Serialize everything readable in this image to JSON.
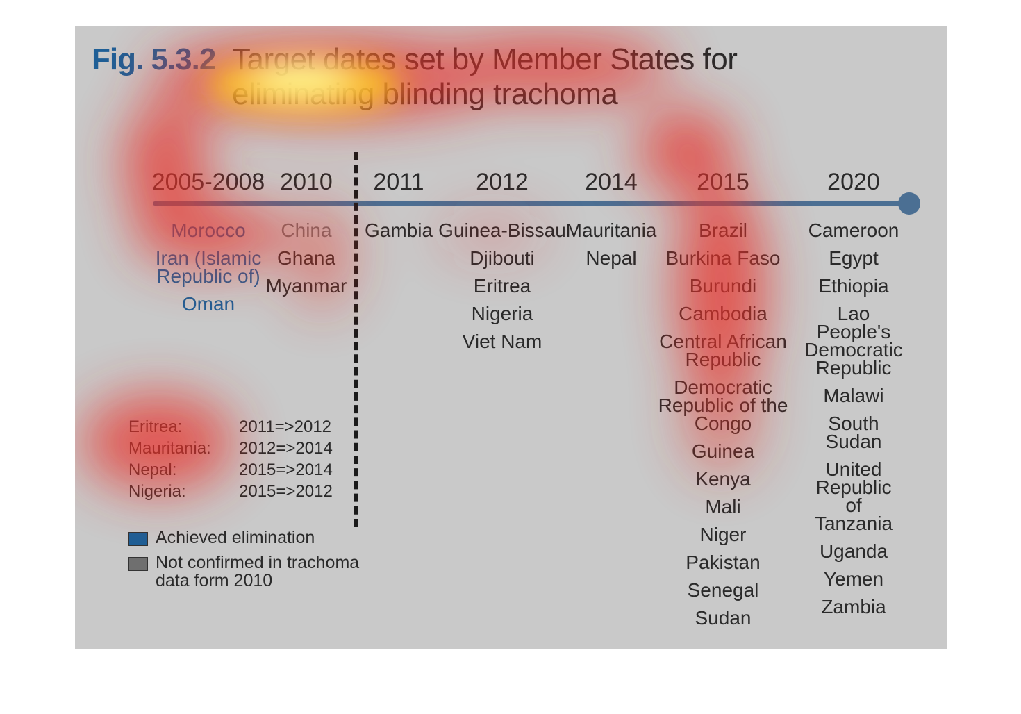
{
  "figure": {
    "label": "Fig. 5.3.2",
    "title": "Target dates set by Member States for eliminating blinding trachoma"
  },
  "colors": {
    "achieved": "#1f5f96",
    "not_confirmed": "#6f6f6f",
    "timeline": "#4b6f93"
  },
  "timeline": [
    {
      "year": "2005-2008",
      "countries": [
        {
          "name": "Morocco",
          "status": "achieved"
        },
        {
          "name": "Iran (Islamic\nRepublic of)",
          "status": "achieved"
        },
        {
          "name": "Oman",
          "status": "achieved"
        }
      ]
    },
    {
      "year": "2010",
      "countries": [
        {
          "name": "China",
          "status": "not_confirmed"
        },
        {
          "name": "Ghana",
          "status": "normal"
        },
        {
          "name": "Myanmar",
          "status": "normal"
        }
      ]
    },
    {
      "year": "2011",
      "countries": [
        {
          "name": "Gambia",
          "status": "normal"
        }
      ]
    },
    {
      "year": "2012",
      "countries": [
        {
          "name": "Guinea-Bissau",
          "status": "normal"
        },
        {
          "name": "Djibouti",
          "status": "normal"
        },
        {
          "name": "Eritrea",
          "status": "normal"
        },
        {
          "name": "Nigeria",
          "status": "normal"
        },
        {
          "name": "Viet Nam",
          "status": "normal"
        }
      ]
    },
    {
      "year": "2014",
      "countries": [
        {
          "name": "Mauritania",
          "status": "normal"
        },
        {
          "name": "Nepal",
          "status": "normal"
        }
      ]
    },
    {
      "year": "2015",
      "countries": [
        {
          "name": "Brazil",
          "status": "normal"
        },
        {
          "name": "Burkina Faso",
          "status": "normal"
        },
        {
          "name": "Burundi",
          "status": "normal"
        },
        {
          "name": "Cambodia",
          "status": "normal"
        },
        {
          "name": "Central African\nRepublic",
          "status": "normal"
        },
        {
          "name": "Democratic\nRepublic of the\nCongo",
          "status": "normal"
        },
        {
          "name": "Guinea",
          "status": "normal"
        },
        {
          "name": "Kenya",
          "status": "normal"
        },
        {
          "name": "Mali",
          "status": "normal"
        },
        {
          "name": "Niger",
          "status": "normal"
        },
        {
          "name": "Pakistan",
          "status": "normal"
        },
        {
          "name": "Senegal",
          "status": "normal"
        },
        {
          "name": "Sudan",
          "status": "normal"
        }
      ]
    },
    {
      "year": "2020",
      "countries": [
        {
          "name": "Cameroon",
          "status": "normal"
        },
        {
          "name": "Egypt",
          "status": "normal"
        },
        {
          "name": "Ethiopia",
          "status": "normal"
        },
        {
          "name": "Lao People's\nDemocratic\nRepublic",
          "status": "normal"
        },
        {
          "name": "Malawi",
          "status": "normal"
        },
        {
          "name": "South Sudan",
          "status": "normal"
        },
        {
          "name": "United Republic\nof Tanzania",
          "status": "normal"
        },
        {
          "name": "Uganda",
          "status": "normal"
        },
        {
          "name": "Yemen",
          "status": "normal"
        },
        {
          "name": "Zambia",
          "status": "normal"
        }
      ]
    }
  ],
  "date_changes": [
    {
      "country": "Eritrea:",
      "change": "2011=>2012"
    },
    {
      "country": "Mauritania:",
      "change": "2012=>2014"
    },
    {
      "country": "Nepal:",
      "change": "2015=>2014"
    },
    {
      "country": "Nigeria:",
      "change": "2015=>2012"
    }
  ],
  "legend": [
    {
      "label": "Achieved elimination",
      "color": "#1f5f96"
    },
    {
      "label": "Not confirmed in trachoma\ndata form 2010",
      "color": "#6f6f6f"
    }
  ]
}
